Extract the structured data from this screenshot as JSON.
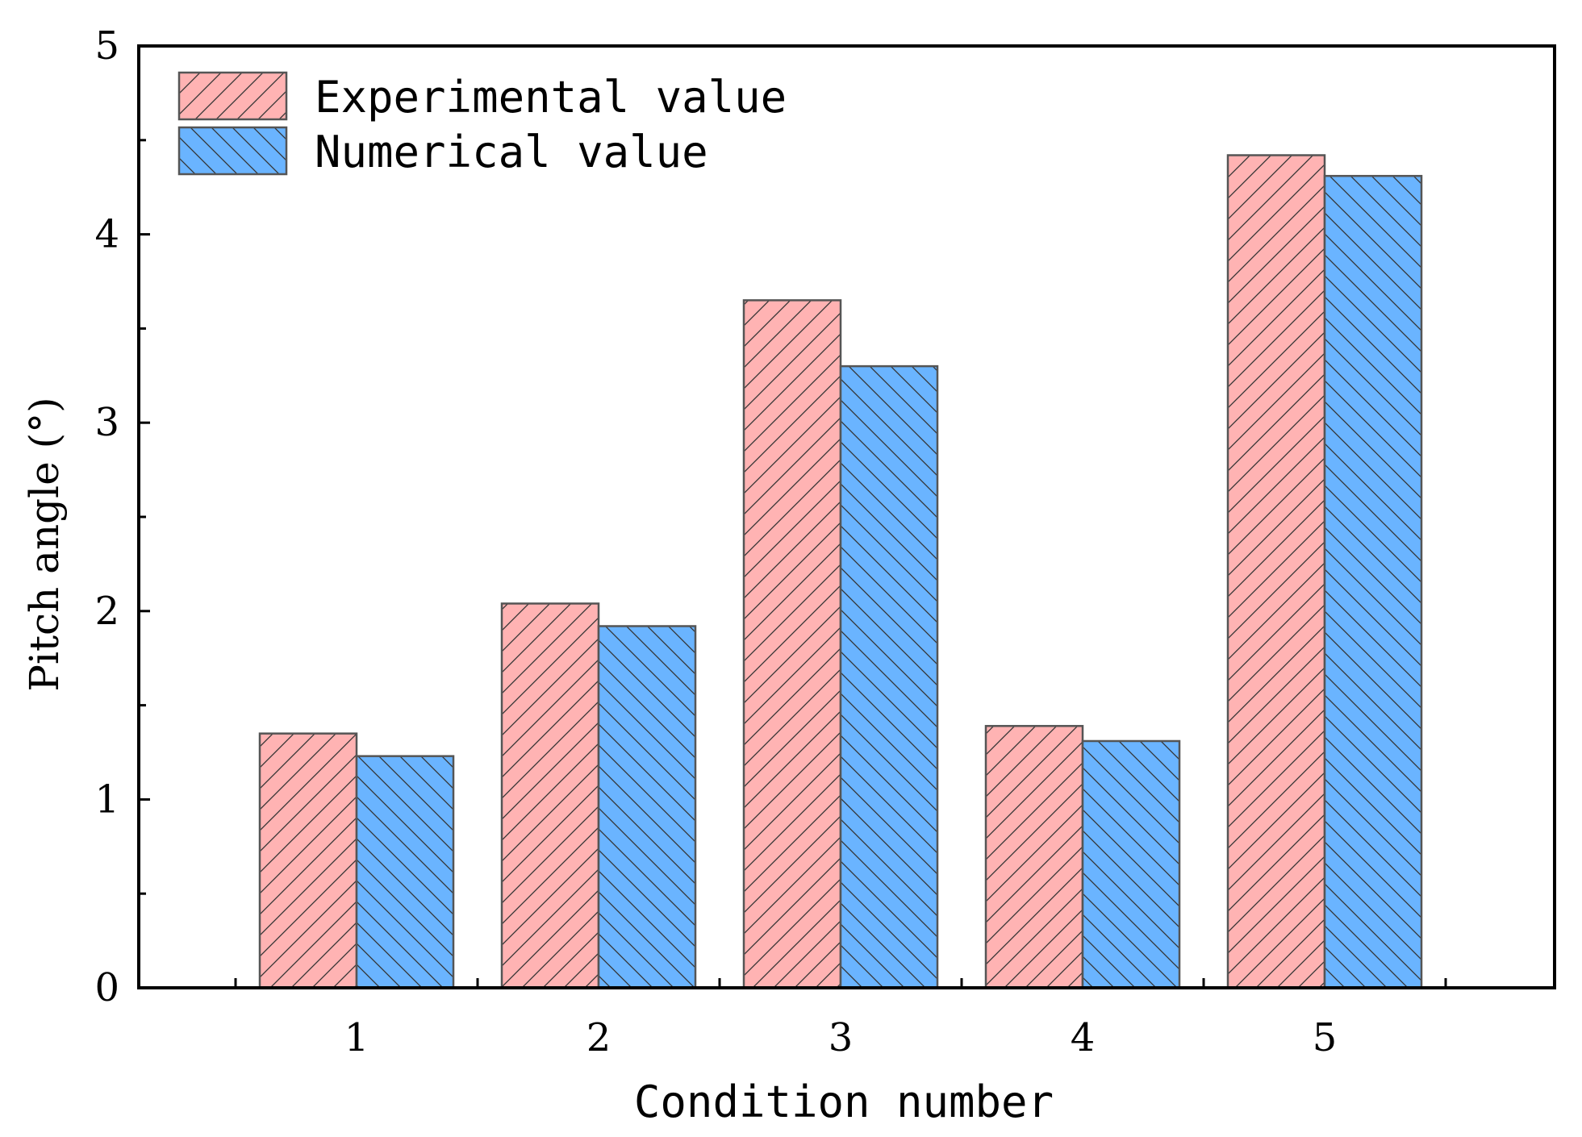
{
  "chart_data": {
    "type": "bar",
    "title": "",
    "xlabel": "Condition number",
    "ylabel": "Pitch angle (°)",
    "categories": [
      "1",
      "2",
      "3",
      "4",
      "5"
    ],
    "ylim": [
      0,
      5
    ],
    "yticks": [
      "0",
      "1",
      "2",
      "3",
      "4",
      "5"
    ],
    "grid": false,
    "legend_position": "top-left",
    "series": [
      {
        "name": "Experimental value",
        "color": "#ffb3b3",
        "hatch": "forward-diagonal",
        "values": [
          1.35,
          2.04,
          3.65,
          1.39,
          4.42
        ]
      },
      {
        "name": "Numerical value",
        "color": "#6ab4ff",
        "hatch": "back-diagonal",
        "values": [
          1.23,
          1.92,
          3.3,
          1.31,
          4.31
        ]
      }
    ]
  }
}
